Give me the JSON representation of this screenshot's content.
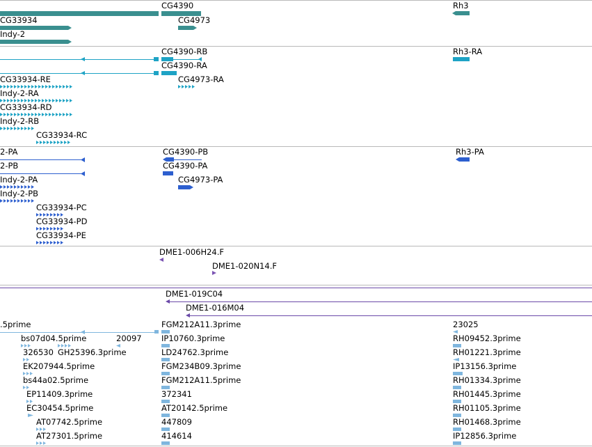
{
  "colors": {
    "gene": "#3a8f8f",
    "transcript": "#1ea3c5",
    "cds": "#2d5fcf",
    "clone": "#7b54b3",
    "bac": "#6a49a8",
    "est": "#7fb6de",
    "separator": "#b9b9b9"
  },
  "tracks": {
    "genes": [
      {
        "label": "CG4390"
      },
      {
        "label": "Rh3"
      },
      {
        "label": "CG33934"
      },
      {
        "label": "CG4973"
      },
      {
        "label": "Indy-2"
      }
    ],
    "transcripts": [
      {
        "label": "CG4390-RB"
      },
      {
        "label": "Rh3-RA"
      },
      {
        "label": "CG4390-RA"
      },
      {
        "label": "CG33934-RE"
      },
      {
        "label": "CG4973-RA"
      },
      {
        "label": "Indy-2-RA"
      },
      {
        "label": "CG33934-RD"
      },
      {
        "label": "Indy-2-RB"
      },
      {
        "label": "CG33934-RC"
      }
    ],
    "proteins": [
      {
        "label": "2-PA"
      },
      {
        "label": "CG4390-PB"
      },
      {
        "label": "Rh3-PA"
      },
      {
        "label": "2-PB"
      },
      {
        "label": "CG4390-PA"
      },
      {
        "label": "Indy-2-PA"
      },
      {
        "label": "CG4973-PA"
      },
      {
        "label": "Indy-2-PB"
      },
      {
        "label": "CG33934-PC"
      },
      {
        "label": "CG33934-PD"
      },
      {
        "label": "CG33934-PE"
      }
    ],
    "clone_ends": [
      {
        "label": "DME1-006H24.F"
      },
      {
        "label": "DME1-020N14.F"
      }
    ],
    "bacs": [
      {
        "label": "DME1-019C04"
      },
      {
        "label": "DME1-016M04"
      }
    ],
    "ests": [
      {
        "label": ".5prime"
      },
      {
        "label": "FGM212A11.3prime"
      },
      {
        "label": "23025"
      },
      {
        "label": "bs07d04.5prime"
      },
      {
        "label": "20097"
      },
      {
        "label": "IP10760.3prime"
      },
      {
        "label": "RH09452.3prime"
      },
      {
        "label": "326530"
      },
      {
        "label": "GH25396.3prime"
      },
      {
        "label": "LD24762.3prime"
      },
      {
        "label": "RH01221.3prime"
      },
      {
        "label": "EK207944.5prime"
      },
      {
        "label": "FGM234B09.3prime"
      },
      {
        "label": "IP13156.3prime"
      },
      {
        "label": "bs44a02.5prime"
      },
      {
        "label": "FGM212A11.5prime"
      },
      {
        "label": "RH01334.3prime"
      },
      {
        "label": "EP11409.3prime"
      },
      {
        "label": "372341"
      },
      {
        "label": "RH01445.3prime"
      },
      {
        "label": "EC30454.5prime"
      },
      {
        "label": "AT20142.5prime"
      },
      {
        "label": "RH01105.3prime"
      },
      {
        "label": "AT07742.5prime"
      },
      {
        "label": "447809"
      },
      {
        "label": "RH01468.3prime"
      },
      {
        "label": "AT27301.5prime"
      },
      {
        "label": "414614"
      },
      {
        "label": "IP12856.3prime"
      }
    ]
  }
}
